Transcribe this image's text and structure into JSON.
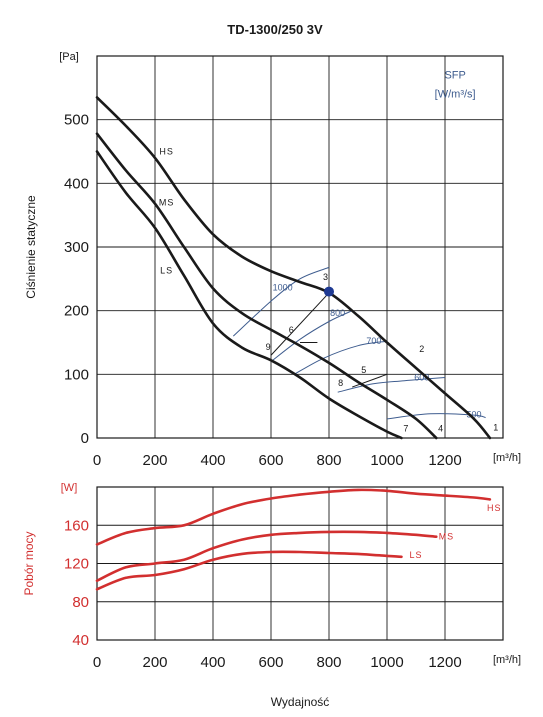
{
  "title": "TD-1300/250 3V",
  "xlabel": "Wydajność",
  "colors": {
    "curve": "#1a1a1a",
    "power": "#d22f2f",
    "sfp": "#3f5d8f",
    "grid": "#1a1a1a"
  },
  "chart_data": [
    {
      "type": "line",
      "ylabel": "Ciśnienie statyczne",
      "y_unit": "[Pa]",
      "x_unit": "[m³/h]",
      "xlim": [
        0,
        1400
      ],
      "ylim": [
        0,
        600
      ],
      "xticks": [
        "0",
        "200",
        "400",
        "600",
        "800",
        "1000",
        "1200"
      ],
      "yticks": [
        "0",
        "100",
        "200",
        "300",
        "400",
        "500"
      ],
      "grid": true,
      "series": [
        {
          "name": "HS",
          "label_at": [
            240,
            445
          ],
          "points": [
            [
              0,
              535
            ],
            [
              100,
              490
            ],
            [
              200,
              440
            ],
            [
              300,
              375
            ],
            [
              400,
              320
            ],
            [
              500,
              285
            ],
            [
              600,
              262
            ],
            [
              700,
              245
            ],
            [
              800,
              228
            ],
            [
              900,
              192
            ],
            [
              1000,
              150
            ],
            [
              1100,
              110
            ],
            [
              1200,
              70
            ],
            [
              1300,
              30
            ],
            [
              1355,
              0
            ]
          ]
        },
        {
          "name": "MS",
          "label_at": [
            240,
            365
          ],
          "points": [
            [
              0,
              478
            ],
            [
              100,
              420
            ],
            [
              200,
              368
            ],
            [
              300,
              300
            ],
            [
              400,
              235
            ],
            [
              500,
              196
            ],
            [
              600,
              170
            ],
            [
              700,
              145
            ],
            [
              800,
              118
            ],
            [
              900,
              88
            ],
            [
              1000,
              60
            ],
            [
              1100,
              30
            ],
            [
              1170,
              0
            ]
          ]
        },
        {
          "name": "LS",
          "label_at": [
            240,
            258
          ],
          "points": [
            [
              0,
              450
            ],
            [
              100,
              385
            ],
            [
              200,
              330
            ],
            [
              300,
              255
            ],
            [
              400,
              180
            ],
            [
              500,
              142
            ],
            [
              600,
              122
            ],
            [
              700,
              95
            ],
            [
              800,
              62
            ],
            [
              900,
              35
            ],
            [
              1000,
              10
            ],
            [
              1050,
              0
            ]
          ]
        }
      ],
      "sfp": {
        "title": "SFP",
        "unit": "[W/m³/s]",
        "lines": [
          {
            "label": "1000",
            "label_at": [
              640,
              232
            ],
            "points": [
              [
                470,
                160
              ],
              [
                600,
                215
              ],
              [
                700,
                250
              ],
              [
                800,
                268
              ]
            ]
          },
          {
            "label": "800",
            "label_at": [
              830,
              192
            ],
            "points": [
              [
                600,
                120
              ],
              [
                700,
                155
              ],
              [
                800,
                183
              ],
              [
                880,
                200
              ]
            ]
          },
          {
            "label": "700",
            "label_at": [
              955,
              148
            ],
            "points": [
              [
                680,
                100
              ],
              [
                780,
                125
              ],
              [
                900,
                145
              ],
              [
                1000,
                152
              ]
            ]
          },
          {
            "label": "600",
            "label_at": [
              1120,
              90
            ],
            "points": [
              [
                830,
                72
              ],
              [
                950,
                85
              ],
              [
                1060,
                90
              ],
              [
                1200,
                95
              ]
            ]
          },
          {
            "label": "500",
            "label_at": [
              1300,
              32
            ],
            "points": [
              [
                1000,
                30
              ],
              [
                1150,
                38
              ],
              [
                1300,
                36
              ],
              [
                1340,
                32
              ]
            ]
          }
        ]
      },
      "operating_point": [
        800,
        230
      ],
      "op_color": "#1f3a93",
      "points": [
        {
          "label": "1",
          "at": [
            1355,
            0
          ],
          "label_at": [
            1375,
            12
          ]
        },
        {
          "label": "2",
          "at": [
            1100,
            110
          ],
          "label_at": [
            1120,
            135
          ]
        },
        {
          "label": "3",
          "at": [
            800,
            228
          ],
          "label_at": [
            788,
            248
          ]
        },
        {
          "label": "4",
          "at": [
            1170,
            0
          ],
          "label_at": [
            1185,
            10
          ]
        },
        {
          "label": "5",
          "at": [
            1000,
            100
          ],
          "label_at": [
            920,
            102
          ]
        },
        {
          "label": "6",
          "at": [
            700,
            150
          ],
          "label_at": [
            670,
            165
          ]
        },
        {
          "label": "7",
          "at": [
            1050,
            0
          ],
          "label_at": [
            1065,
            10
          ]
        },
        {
          "label": "8",
          "at": [
            880,
            80
          ],
          "label_at": [
            840,
            82
          ]
        },
        {
          "label": "9",
          "at": [
            600,
            130
          ],
          "label_at": [
            590,
            138
          ]
        }
      ],
      "point_lines": [
        [
          [
            600,
            130
          ],
          [
            800,
            228
          ]
        ],
        [
          [
            700,
            150
          ],
          [
            760,
            150
          ]
        ],
        [
          [
            880,
            80
          ],
          [
            1000,
            100
          ]
        ]
      ]
    },
    {
      "type": "line",
      "ylabel": "Pobór mocy",
      "y_unit": "[W]",
      "x_unit": "[m³/h]",
      "xlim": [
        0,
        1400
      ],
      "ylim": [
        40,
        200
      ],
      "xticks": [
        "0",
        "200",
        "400",
        "600",
        "800",
        "1000",
        "1200"
      ],
      "yticks": [
        "40",
        "80",
        "120",
        "160"
      ],
      "grid": true,
      "series": [
        {
          "name": "HS",
          "label_at": [
            1370,
            175
          ],
          "points": [
            [
              0,
              140
            ],
            [
              100,
              152
            ],
            [
              200,
              157
            ],
            [
              300,
              160
            ],
            [
              400,
              172
            ],
            [
              500,
              182
            ],
            [
              600,
              188
            ],
            [
              700,
              192
            ],
            [
              800,
              195
            ],
            [
              900,
              197
            ],
            [
              1000,
              196
            ],
            [
              1100,
              193
            ],
            [
              1200,
              191
            ],
            [
              1300,
              189
            ],
            [
              1355,
              187
            ]
          ]
        },
        {
          "name": "MS",
          "label_at": [
            1205,
            145
          ],
          "points": [
            [
              0,
              102
            ],
            [
              100,
              116
            ],
            [
              200,
              120
            ],
            [
              300,
              124
            ],
            [
              400,
              136
            ],
            [
              500,
              145
            ],
            [
              600,
              150
            ],
            [
              700,
              152
            ],
            [
              800,
              153
            ],
            [
              900,
              153
            ],
            [
              1000,
              152
            ],
            [
              1100,
              150
            ],
            [
              1170,
              148
            ]
          ]
        },
        {
          "name": "LS",
          "label_at": [
            1100,
            126
          ],
          "points": [
            [
              0,
              93
            ],
            [
              100,
              105
            ],
            [
              200,
              108
            ],
            [
              300,
              114
            ],
            [
              400,
              124
            ],
            [
              500,
              130
            ],
            [
              600,
              132
            ],
            [
              700,
              132
            ],
            [
              800,
              131
            ],
            [
              900,
              130
            ],
            [
              1000,
              128
            ],
            [
              1050,
              127
            ]
          ]
        }
      ]
    }
  ]
}
